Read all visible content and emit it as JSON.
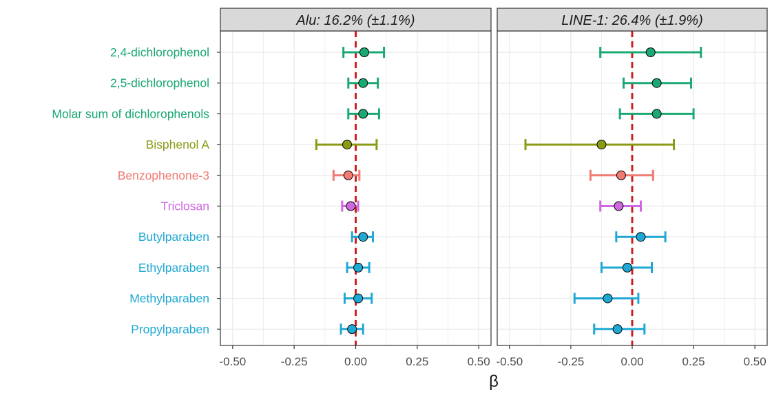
{
  "chart_data": {
    "type": "forest",
    "xlabel": "β",
    "xlim": [
      -0.55,
      0.55
    ],
    "x_ticks": [
      "-0.50",
      "-0.25",
      "0.00",
      "0.25",
      "0.50"
    ],
    "x_tick_values": [
      -0.5,
      -0.25,
      0,
      0.25,
      0.5
    ],
    "reference_line": 0.0,
    "grid": true,
    "row_labels": [
      "2,4-dichlorophenol",
      "2,5-dichlorophenol",
      "Molar sum of dichlorophenols",
      "Bisphenol A",
      "Benzophenone-3",
      "Triclosan",
      "Butylparaben",
      "Ethylparaben",
      "Methylparaben",
      "Propylparaben"
    ],
    "row_colors": [
      "#1aa873",
      "#1aa873",
      "#1aa873",
      "#8a9a12",
      "#ef7b72",
      "#cf67e0",
      "#1fa8d4",
      "#1fa8d4",
      "#1fa8d4",
      "#1fa8d4"
    ],
    "panels": [
      {
        "title": "Alu: 16.2% (±1.1%)",
        "estimate": [
          0.035,
          0.03,
          0.03,
          -0.035,
          -0.03,
          -0.02,
          0.03,
          0.01,
          0.01,
          -0.015
        ],
        "lower": [
          -0.05,
          -0.03,
          -0.03,
          -0.16,
          -0.09,
          -0.055,
          -0.015,
          -0.035,
          -0.045,
          -0.06
        ],
        "upper": [
          0.115,
          0.09,
          0.095,
          0.085,
          0.015,
          0.01,
          0.07,
          0.055,
          0.065,
          0.03
        ]
      },
      {
        "title": "LINE-1: 26.4% (±1.9%)",
        "estimate": [
          0.075,
          0.1,
          0.1,
          -0.125,
          -0.045,
          -0.055,
          0.035,
          -0.02,
          -0.1,
          -0.06
        ],
        "lower": [
          -0.13,
          -0.035,
          -0.05,
          -0.435,
          -0.17,
          -0.13,
          -0.065,
          -0.125,
          -0.235,
          -0.155
        ],
        "upper": [
          0.28,
          0.24,
          0.25,
          0.17,
          0.085,
          0.035,
          0.135,
          0.08,
          0.025,
          0.05
        ]
      }
    ]
  },
  "colors": {
    "strip_fill": "#d9d9d9",
    "strip_border": "#333333",
    "panel_border": "#333333",
    "grid": "#ebebeb",
    "reference_line": "#cc1f1f",
    "tick_text": "#4d4d4d"
  }
}
